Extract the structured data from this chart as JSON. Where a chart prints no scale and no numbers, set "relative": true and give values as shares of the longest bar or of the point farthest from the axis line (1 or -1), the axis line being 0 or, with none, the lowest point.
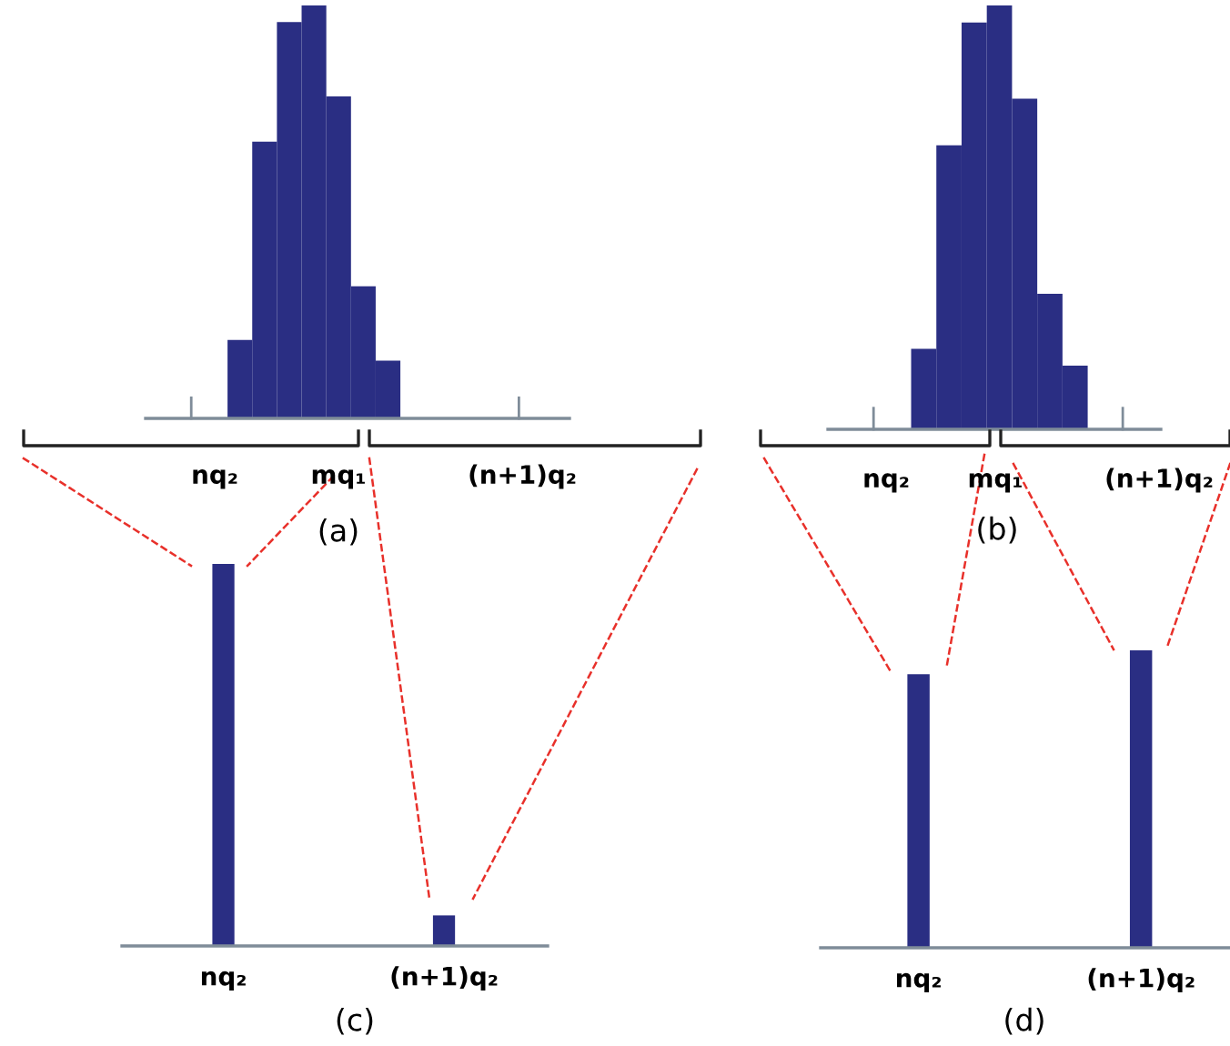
{
  "chart_data": [
    {
      "type": "bar",
      "categories": [
        null,
        null,
        null,
        null,
        null,
        null,
        null
      ],
      "values": [
        0.19,
        0.67,
        0.96,
        1,
        0.78,
        0.32,
        0.14
      ],
      "color": "#2a2e83",
      "relative": true,
      "tick_labels": false,
      "xlabel": "(a)",
      "annotations": [
        "nq₂",
        "mq₁",
        "(n+1)q₂"
      ]
    },
    {
      "type": "bar",
      "categories": [
        null,
        null,
        null,
        null,
        null,
        null,
        null
      ],
      "values": [
        0.19,
        0.67,
        0.96,
        1,
        0.78,
        0.32,
        0.15
      ],
      "color": "#2a2e83",
      "relative": true,
      "tick_labels": false,
      "xlabel": "(b)",
      "annotations": [
        "nq₂",
        "mq₁",
        "(n+1)q₂"
      ]
    },
    {
      "type": "bar",
      "categories": [
        "nq₂",
        "(n+1)q₂"
      ],
      "values": [
        1,
        0.08
      ],
      "color": "#2a2e83",
      "relative": true,
      "tick_labels": "x",
      "xlabel": "(c)"
    },
    {
      "type": "bar",
      "categories": [
        "nq₂",
        "(n+1)q₂"
      ],
      "values": [
        0.92,
        1
      ],
      "color": "#2a2e83",
      "relative": true,
      "tick_labels": "x",
      "xlabel": "(d)"
    }
  ]
}
